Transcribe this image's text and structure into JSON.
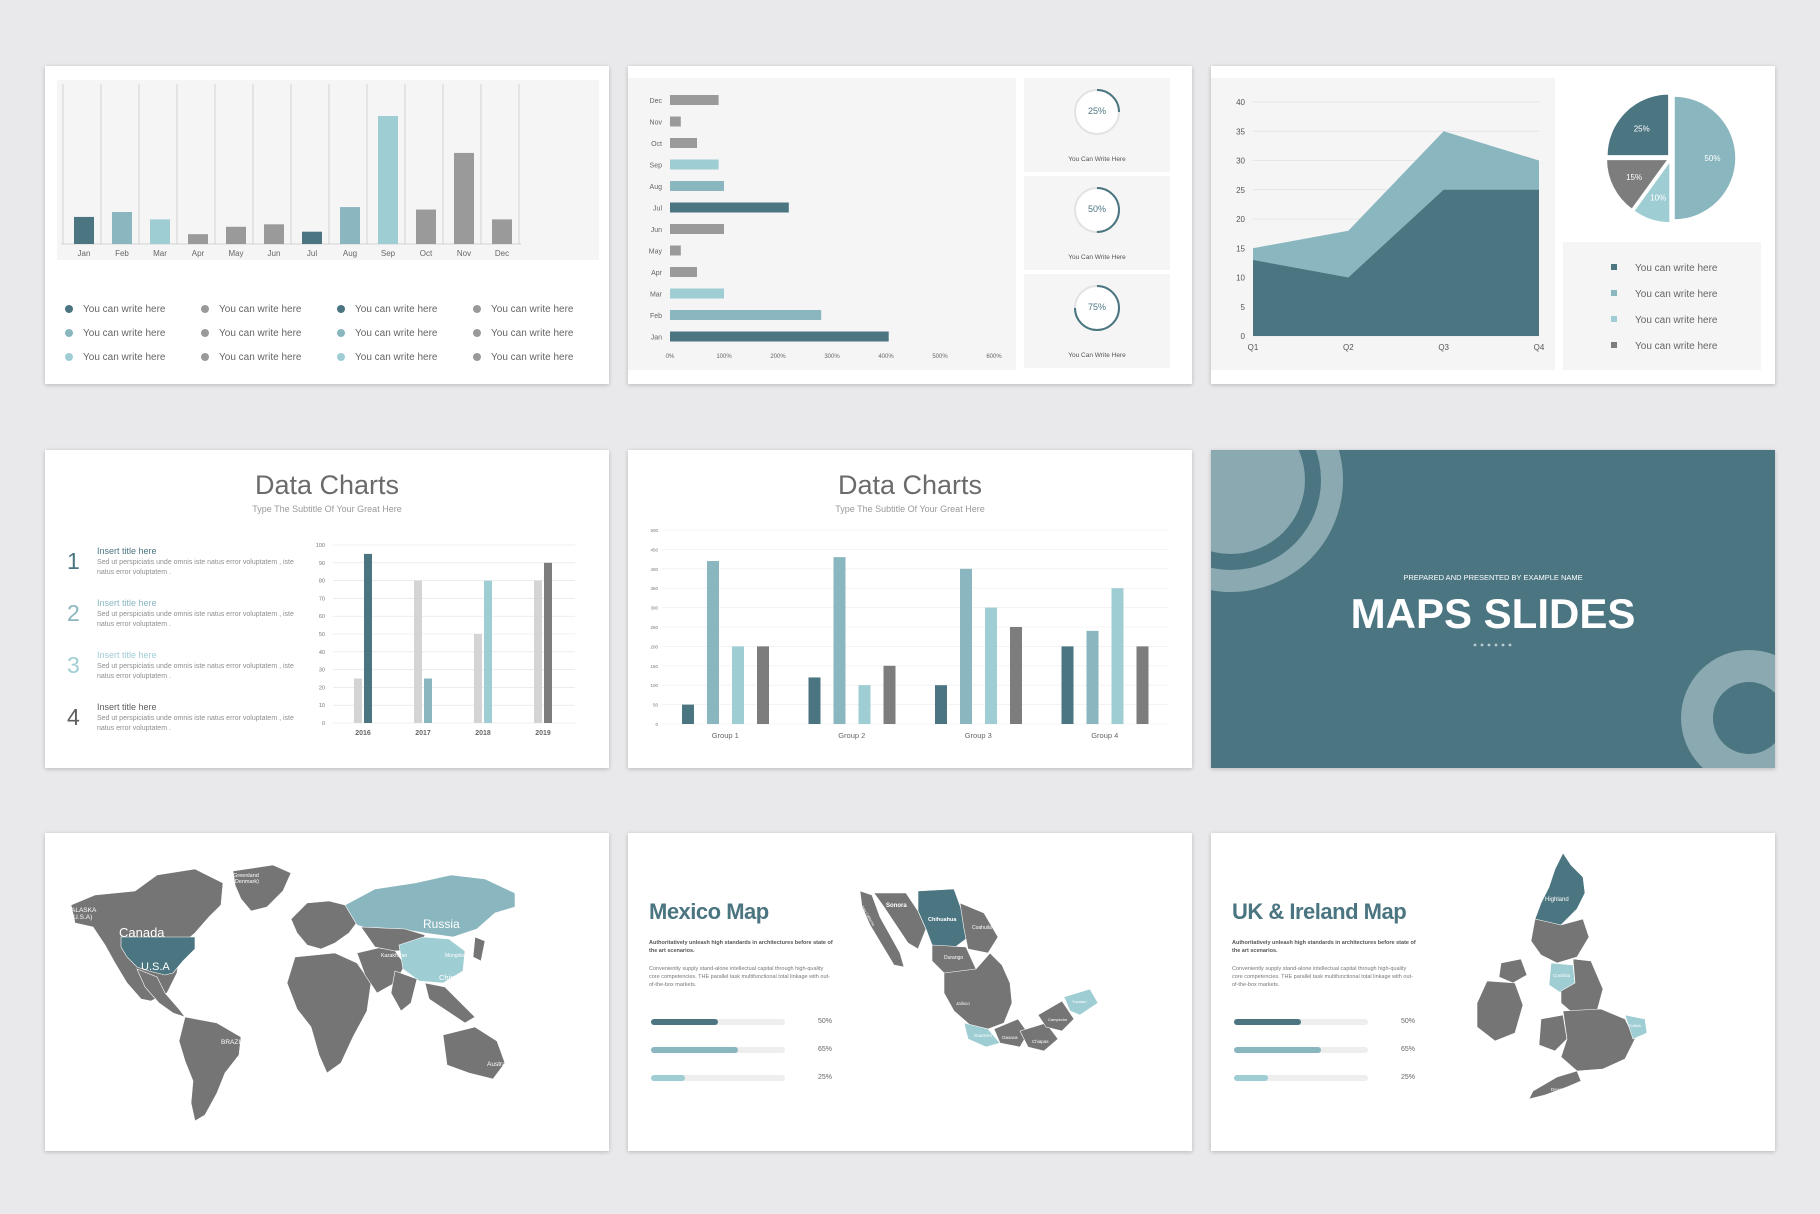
{
  "colors": {
    "dark": "#4b7581",
    "light": "#8ab6bf",
    "pale": "#9fcdd4",
    "grey": "#9a9a9a",
    "midgrey": "#7d7d7d",
    "lightgrey": "#d4d4d4",
    "panel": "#f5f5f5"
  },
  "slide1": {
    "chart_data": {
      "type": "bar",
      "categories": [
        "Jan",
        "Feb",
        "Mar",
        "Apr",
        "May",
        "Jun",
        "Jul",
        "Aug",
        "Sep",
        "Oct",
        "Nov",
        "Dec"
      ],
      "values": [
        11,
        13,
        10,
        4,
        7,
        8,
        5,
        15,
        52,
        14,
        37,
        10
      ],
      "color_keys": [
        "dark",
        "light",
        "pale",
        "grey",
        "grey",
        "grey",
        "dark",
        "light",
        "pale",
        "grey",
        "grey",
        "grey"
      ],
      "ylim": [
        0,
        65
      ]
    },
    "legend": [
      {
        "label": "You can write here",
        "color": "dark"
      },
      {
        "label": "You can write here",
        "color": "grey"
      },
      {
        "label": "You can write here",
        "color": "dark"
      },
      {
        "label": "You can write here",
        "color": "grey"
      },
      {
        "label": "You can write here",
        "color": "light"
      },
      {
        "label": "You can write here",
        "color": "grey"
      },
      {
        "label": "You can write here",
        "color": "light"
      },
      {
        "label": "You can write here",
        "color": "grey"
      },
      {
        "label": "You can write here",
        "color": "pale"
      },
      {
        "label": "You can write here",
        "color": "grey"
      },
      {
        "label": "You can write here",
        "color": "pale"
      },
      {
        "label": "You can write here",
        "color": "grey"
      }
    ]
  },
  "slide2": {
    "chart_data": {
      "type": "bar",
      "orientation": "horizontal",
      "categories": [
        "Dec",
        "Nov",
        "Oct",
        "Sep",
        "Aug",
        "Jul",
        "Jun",
        "May",
        "Apr",
        "Mar",
        "Feb",
        "Jan"
      ],
      "values": [
        90,
        20,
        50,
        90,
        100,
        220,
        100,
        20,
        50,
        100,
        280,
        405
      ],
      "color_keys": [
        "grey",
        "grey",
        "grey",
        "pale",
        "light",
        "dark",
        "grey",
        "grey",
        "grey",
        "pale",
        "light",
        "dark"
      ],
      "xticks": [
        "0%",
        "100%",
        "200%",
        "300%",
        "400%",
        "500%",
        "600%"
      ],
      "xlim": [
        0,
        600
      ]
    },
    "cards": [
      {
        "percent": 25,
        "percent_label": "25%",
        "label": "You Can Write Here"
      },
      {
        "percent": 50,
        "percent_label": "50%",
        "label": "You Can Write Here"
      },
      {
        "percent": 75,
        "percent_label": "75%",
        "label": "You Can Write Here"
      }
    ]
  },
  "slide3": {
    "chart_data": [
      {
        "type": "area",
        "x": [
          "Q1",
          "Q2",
          "Q3",
          "Q4"
        ],
        "series": [
          {
            "values": [
              15,
              18,
              35,
              30
            ],
            "color": "light"
          },
          {
            "values": [
              13,
              10,
              25,
              25
            ],
            "color": "dark"
          }
        ],
        "yticks": [
          "40",
          "35",
          "30",
          "25",
          "20",
          "15",
          "10",
          "5",
          "0"
        ],
        "ylim": [
          0,
          40
        ]
      },
      {
        "type": "pie",
        "slices": [
          {
            "label": "25%",
            "value": 25,
            "color": "dark"
          },
          {
            "label": "50%",
            "value": 50,
            "color": "light"
          },
          {
            "label": "10%",
            "value": 10,
            "color": "pale"
          },
          {
            "label": "15%",
            "value": 15,
            "color": "midgrey"
          }
        ]
      }
    ],
    "legend": [
      {
        "label": "You can write here",
        "color": "dark"
      },
      {
        "label": "You can write here",
        "color": "light"
      },
      {
        "label": "You can write here",
        "color": "pale"
      },
      {
        "label": "You can write here",
        "color": "midgrey"
      }
    ]
  },
  "slide4": {
    "title": "Data Charts",
    "subtitle": "Type The Subtitle Of Your Great Here",
    "items": [
      {
        "num": "1",
        "title": "Insert title here",
        "body": "Sed ut perspiciatis unde omnis iste natus error voluptatem , iste natus error voluptatem ."
      },
      {
        "num": "2",
        "title": "Insert title here",
        "body": "Sed ut perspiciatis unde omnis iste natus error voluptatem , iste natus error voluptatem ."
      },
      {
        "num": "3",
        "title": "Insert title here",
        "body": "Sed ut perspiciatis unde omnis iste natus error voluptatem , iste natus error voluptatem ."
      },
      {
        "num": "4",
        "title": "Insert title here",
        "body": "Sed ut perspiciatis unde omnis iste natus error voluptatem , iste natus error voluptatem ."
      }
    ],
    "chart_data": {
      "type": "bar",
      "categories": [
        "2016",
        "2017",
        "2018",
        "2019"
      ],
      "series": [
        {
          "values": [
            25,
            80,
            50,
            80
          ],
          "color": "lightgrey"
        },
        {
          "values": [
            95,
            25,
            80,
            90
          ],
          "color_keys": [
            "dark",
            "light",
            "pale",
            "midgrey"
          ]
        }
      ],
      "yticks": [
        "100",
        "90",
        "80",
        "70",
        "60",
        "50",
        "40",
        "30",
        "20",
        "10",
        "0"
      ],
      "ylim": [
        0,
        100
      ]
    }
  },
  "slide5": {
    "title": "Data Charts",
    "subtitle": "Type The Subtitle Of Your Great Here",
    "chart_data": {
      "type": "bar",
      "categories": [
        "Group 1",
        "Group 2",
        "Group 3",
        "Group 4"
      ],
      "series": [
        {
          "values": [
            50,
            120,
            100,
            200
          ],
          "color": "dark"
        },
        {
          "values": [
            420,
            430,
            400,
            240
          ],
          "color": "light"
        },
        {
          "values": [
            200,
            100,
            300,
            350
          ],
          "color": "pale"
        },
        {
          "values": [
            200,
            150,
            250,
            200
          ],
          "color": "midgrey"
        }
      ],
      "yticks": [
        "500",
        "450",
        "400",
        "350",
        "300",
        "250",
        "200",
        "150",
        "100",
        "50",
        "0"
      ],
      "ylim": [
        0,
        500
      ]
    }
  },
  "slide6": {
    "prepared": "PREPARED AND PRESENTED BY EXAMPLE NAME",
    "title": "MAPS SLIDES"
  },
  "slide7": {
    "labels": {
      "greenland": "Greenland\n(Denmark)",
      "alaska": "ALASKA\n(U.S.A)",
      "canada": "Canada",
      "usa": "U.S.A",
      "russia": "Russia",
      "brazil": "BRAZIL",
      "australia": "Australia",
      "china": "China",
      "kazakhstan": "Kazakhstan",
      "mongolia": "Mongolia",
      "india": "India"
    }
  },
  "slide8": {
    "title": "Mexico Map",
    "bold": "Authoritatively unleash high standards in architectures before state of the art scenarios.",
    "body": "Conveniently supply stand-alone intellectual capital through high-quality core competencies. THE parallel task multifunctional total linkage with out-of-the-box markets.",
    "bars": [
      {
        "percent": 50,
        "label": "50%",
        "color": "dark"
      },
      {
        "percent": 65,
        "label": "65%",
        "color": "light"
      },
      {
        "percent": 25,
        "label": "25%",
        "color": "pale"
      }
    ],
    "states": {
      "sonora": "Sonora",
      "chihuahua": "Chihuahua",
      "coahuila": "Coahuila",
      "durango": "Durango",
      "jalisco": "Jalisco",
      "guerrero": "Guerrero",
      "oaxaca": "Oaxaca",
      "chiapas": "Chiapas",
      "yucatan": "Yucatan",
      "campeche": "Campeche",
      "baja": "Baja California"
    }
  },
  "slide9": {
    "title": "UK & Ireland Map",
    "bold": "Authoritatively unleash high standards in architectures before state of the art scenarios.",
    "body": "Conveniently supply stand-alone intellectual capital through high-quality core competencies. THE parallel task multifunctional total linkage with out-of-the-box markets.",
    "bars": [
      {
        "percent": 50,
        "label": "50%",
        "color": "dark"
      },
      {
        "percent": 65,
        "label": "65%",
        "color": "light"
      },
      {
        "percent": 25,
        "label": "25%",
        "color": "pale"
      }
    ],
    "regions": {
      "highland": "Highland",
      "cumbria": "Cumbria",
      "suffolk": "Suffolk",
      "devon": "Devon"
    }
  }
}
